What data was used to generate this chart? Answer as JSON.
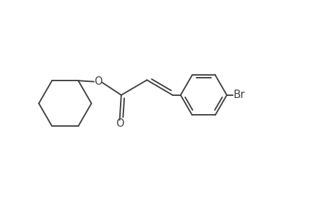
{
  "background_color": "#ffffff",
  "line_color": "#404040",
  "line_width": 1.4,
  "text_color": "#404040",
  "font_size": 10.5,
  "br_label": "Br",
  "o_label1": "O",
  "o_label2": "O",
  "figsize": [
    4.6,
    3.0
  ],
  "dpi": 100,
  "xlim": [
    0,
    10
  ],
  "ylim": [
    0,
    6.5
  ]
}
